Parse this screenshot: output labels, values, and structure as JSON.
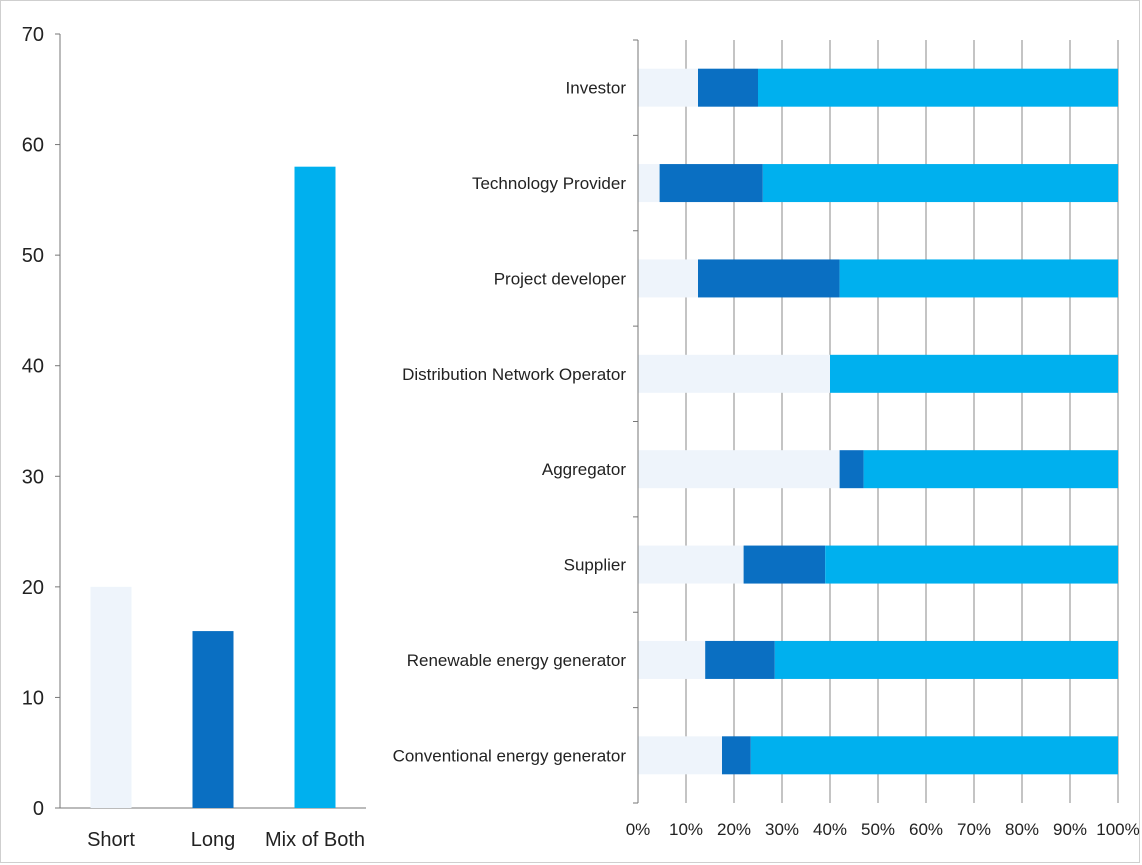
{
  "chart_data": [
    {
      "type": "bar",
      "title": "",
      "xlabel": "",
      "ylabel": "",
      "ylim": [
        0,
        70
      ],
      "yticks": [
        0,
        10,
        20,
        30,
        40,
        50,
        60,
        70
      ],
      "grid": false,
      "categories": [
        "Short",
        "Long",
        "Mix of Both"
      ],
      "values": [
        20,
        16,
        58
      ],
      "colors": [
        "#eef4fb",
        "#0a6fc2",
        "#00b0ee"
      ]
    },
    {
      "type": "bar",
      "orientation": "horizontal",
      "stacked": true,
      "percent": true,
      "title": "",
      "xlabel": "",
      "ylabel": "",
      "xlim": [
        0,
        100
      ],
      "xticks": [
        "0%",
        "10%",
        "20%",
        "30%",
        "40%",
        "50%",
        "60%",
        "70%",
        "80%",
        "90%",
        "100%"
      ],
      "grid": "vertical",
      "categories": [
        "Investor",
        "Technology Provider",
        "Project developer",
        "Distribution Network Operator",
        "Aggregator",
        "Supplier",
        "Renewable energy generator",
        "Conventional energy generator"
      ],
      "series": [
        {
          "color": "#eef4fb",
          "values": [
            12.5,
            4.5,
            12.5,
            40,
            42,
            22,
            14,
            17.5
          ]
        },
        {
          "color": "#0a6fc2",
          "values": [
            12.5,
            21.5,
            29.5,
            0,
            5,
            17,
            14.5,
            6
          ]
        },
        {
          "color": "#00b0ee",
          "values": [
            75,
            74,
            58,
            60,
            53,
            61,
            71.5,
            76.5
          ]
        }
      ]
    }
  ]
}
